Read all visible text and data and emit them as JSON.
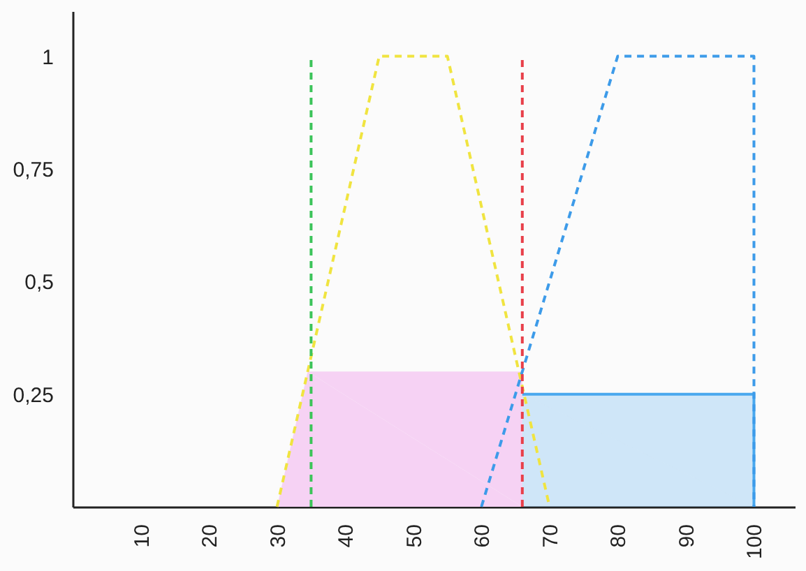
{
  "chart_data": {
    "type": "line",
    "xlim": [
      0,
      106
    ],
    "xticks": [
      10,
      20,
      30,
      40,
      50,
      60,
      70,
      80,
      90,
      100
    ],
    "ylim": [
      0,
      1.1
    ],
    "yticks": [
      {
        "value": 0.25,
        "label": "0,25"
      },
      {
        "value": 0.5,
        "label": "0,5"
      },
      {
        "value": 0.75,
        "label": "0,75"
      },
      1
    ],
    "grid": false,
    "series": [
      {
        "type": "area",
        "color": "#f6d2f4",
        "x": [
          30,
          34.5,
          66
        ],
        "values": [
          0,
          0.3,
          0.3
        ]
      },
      {
        "type": "area",
        "color": "#4aa8ee",
        "line_style": "solid",
        "x": [
          66,
          100
        ],
        "values": [
          0.25,
          0.25
        ]
      },
      {
        "type": "line",
        "color": "#f0e440",
        "line_style": "dashed",
        "x": [
          30,
          45,
          55,
          70
        ],
        "values": [
          0,
          1,
          1,
          0
        ]
      },
      {
        "type": "line",
        "color": "#3d9be9",
        "line_style": "dashed",
        "x": [
          60,
          80,
          100,
          100
        ],
        "values": [
          0,
          1,
          1,
          0
        ]
      },
      {
        "type": "line",
        "color": "#3cc45a",
        "line_style": "dashed",
        "x": [
          35,
          35
        ],
        "values": [
          0,
          1
        ]
      },
      {
        "type": "line",
        "color": "#e8404a",
        "line_style": "dashed",
        "x": [
          66,
          66
        ],
        "values": [
          0,
          1
        ]
      }
    ]
  }
}
